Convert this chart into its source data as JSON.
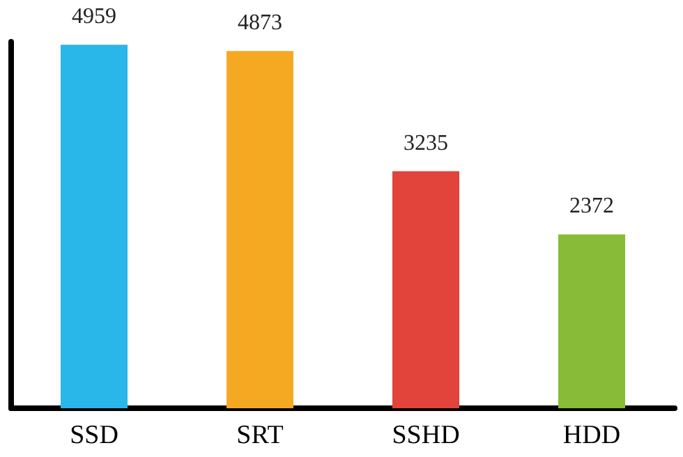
{
  "chart_data": {
    "type": "bar",
    "categories": [
      "SSD",
      "SRT",
      "SSHD",
      "HDD"
    ],
    "values": [
      4959,
      4873,
      3235,
      2372
    ],
    "colors": [
      "#29b6e9",
      "#f5a923",
      "#e2433a",
      "#87bb38"
    ],
    "data_labels": true,
    "tick_labels": "x"
  }
}
